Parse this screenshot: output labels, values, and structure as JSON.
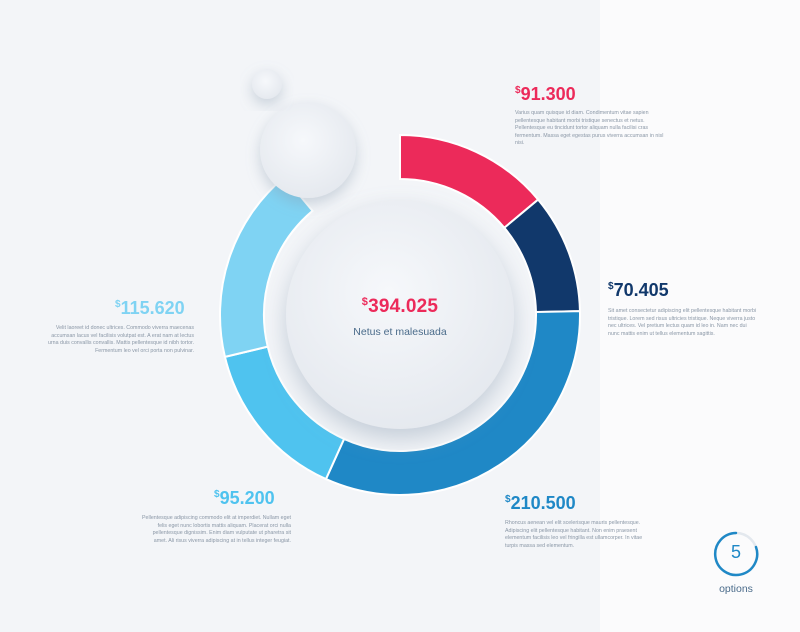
{
  "chart_data": {
    "type": "pie",
    "style": "donut",
    "segments": [
      {
        "label": "$91.300",
        "value": 91300,
        "color": "#ec2a5a"
      },
      {
        "label": "$70.405",
        "value": 70405,
        "color": "#11386b"
      },
      {
        "label": "$210.500",
        "value": 210500,
        "color": "#1f88c6"
      },
      {
        "label": "$95.200",
        "value": 95200,
        "color": "#4fc3ef"
      },
      {
        "label": "$115.620",
        "value": 115620,
        "color": "#7fd3f3"
      }
    ]
  },
  "center": {
    "currency": "$",
    "value": "394.025",
    "label": "Netus et malesuada"
  },
  "callouts": [
    {
      "currency": "$",
      "value": "91.300",
      "color": "#ec2a5a",
      "text": "Varius quam quisque id diam. Condimentum vitae sapien pellentesque habitant morbi tristique senectus et netus. Pellentesque eu tincidunt tortor aliquam nulla facilisi cras fermentum. Massa eget egestas purus viverra accumsan in nisl nisi."
    },
    {
      "currency": "$",
      "value": "70.405",
      "color": "#11386b",
      "text": "Sit amet consectetur adipiscing elit pellentesque habitant morbi tristique. Lorem sed risus ultricies tristique. Neque viverra justo nec ultrices. Vel pretium lectus quam id leo in. Nam nec dui nunc mattis enim ut tellus elementum sagittis."
    },
    {
      "currency": "$",
      "value": "210.500",
      "color": "#1f88c6",
      "text": "Rhoncus aenean vel elit scelerisque mauris pellentesque. Adipiscing elit pellentesque habitant. Non enim praesent elementum facilisis leo vel fringilla est ullamcorper. In vitae turpis massa sed elementum."
    },
    {
      "currency": "$",
      "value": "95.200",
      "color": "#4fc3ef",
      "text": "Pellentesque adipiscing commodo elit at imperdiet. Nullam eget felis eget nunc lobortis mattis aliquam. Placerat orci nulla pellentesque dignissim. Enim diam vulputate ut pharetra sit amet. Ali risus viverra adipiscing at in tellus integer feugiat."
    },
    {
      "currency": "$",
      "value": "115.620",
      "color": "#7fd3f3",
      "text": "Velit laoreet id donec ultrices. Commodo viverra maecenas accumsan lacus vel facilisis volutpat est. A erat nam at lectus urna duis convallis convallis. Mattis pellentesque id nibh tortor. Fermentum leo vel orci porta non pulvinar."
    }
  ],
  "options": {
    "count": "5",
    "label": "options"
  }
}
